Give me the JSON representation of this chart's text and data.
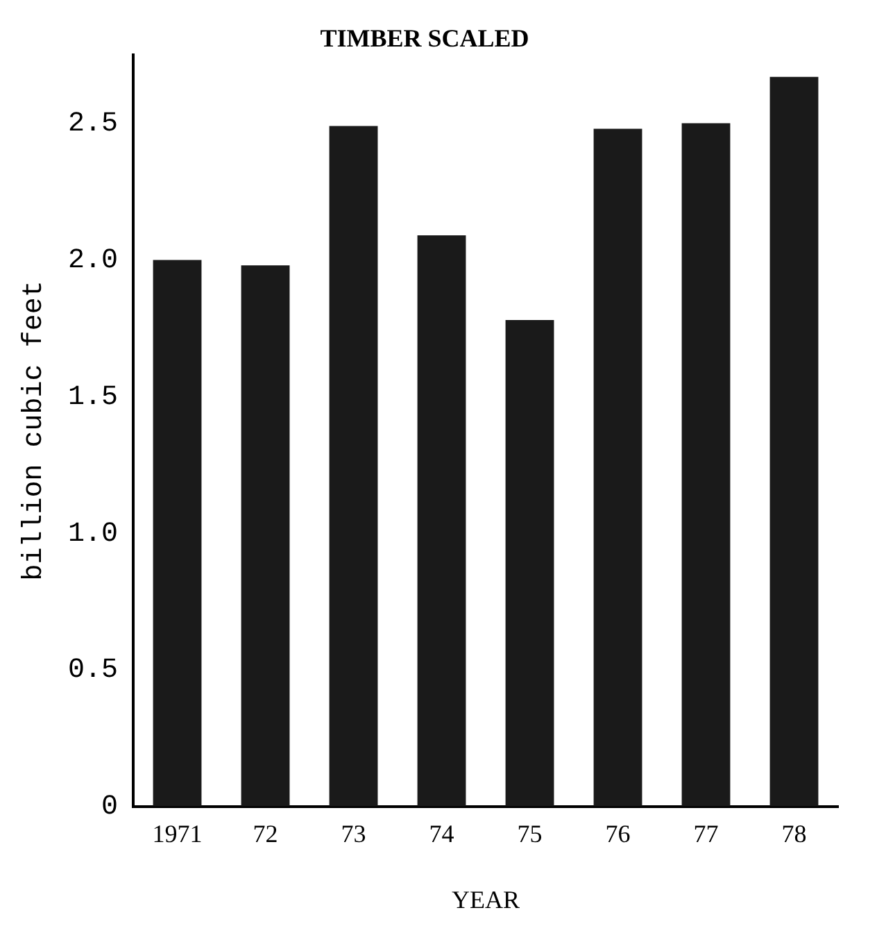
{
  "chart_data": {
    "type": "bar",
    "title": "TIMBER SCALED",
    "xlabel": "YEAR",
    "ylabel": "billion cubic feet",
    "categories": [
      "1971",
      "72",
      "73",
      "74",
      "75",
      "76",
      "77",
      "78"
    ],
    "values": [
      2.0,
      1.98,
      2.49,
      2.09,
      1.78,
      2.48,
      2.5,
      2.67
    ],
    "color": "#1a1a1a",
    "ylim": [
      0,
      2.75
    ],
    "yticks": [
      0,
      {
        "value": 0.5,
        "label": "0.5"
      },
      {
        "value": 1,
        "label": "1.0"
      },
      1.5,
      {
        "value": 2,
        "label": "2.0"
      },
      2.5
    ],
    "grid": false,
    "legend": false
  }
}
